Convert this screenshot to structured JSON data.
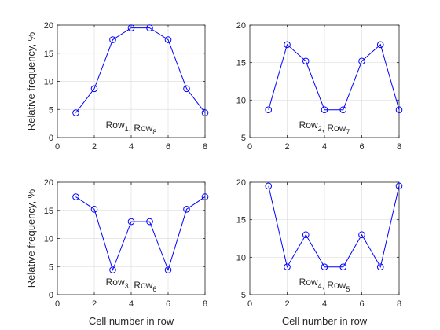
{
  "chart_data": [
    {
      "type": "line",
      "x": [
        1,
        2,
        3,
        4,
        5,
        6,
        7,
        8
      ],
      "series": [
        {
          "values": [
            4.4,
            8.7,
            17.4,
            19.5,
            19.5,
            17.4,
            8.7,
            4.4
          ]
        }
      ],
      "annotation": {
        "parts": [
          [
            "Row",
            "1"
          ],
          [
            "Row",
            "8"
          ]
        ]
      },
      "xlim": [
        0,
        8
      ],
      "ylim": [
        0,
        20
      ],
      "xticks": [
        0,
        2,
        4,
        6,
        8
      ],
      "yticks": [
        0,
        5,
        10,
        15,
        20
      ],
      "xlabel": "",
      "ylabel": "Relative frequency,  %",
      "grid": true,
      "color": "#0000ff",
      "marker": "circle"
    },
    {
      "type": "line",
      "x": [
        1,
        2,
        3,
        4,
        5,
        6,
        7,
        8
      ],
      "series": [
        {
          "values": [
            8.7,
            17.4,
            15.2,
            8.7,
            8.7,
            15.2,
            17.4,
            8.7
          ]
        }
      ],
      "annotation": {
        "parts": [
          [
            "Row",
            "2"
          ],
          [
            "Row",
            "7"
          ]
        ]
      },
      "xlim": [
        0,
        8
      ],
      "ylim": [
        5,
        20
      ],
      "xticks": [
        0,
        2,
        4,
        6,
        8
      ],
      "yticks": [
        5,
        10,
        15,
        20
      ],
      "xlabel": "",
      "ylabel": "",
      "grid": true,
      "color": "#0000ff",
      "marker": "circle"
    },
    {
      "type": "line",
      "x": [
        1,
        2,
        3,
        4,
        5,
        6,
        7,
        8
      ],
      "series": [
        {
          "values": [
            17.4,
            15.2,
            4.4,
            13.0,
            13.0,
            4.4,
            15.2,
            17.4
          ]
        }
      ],
      "annotation": {
        "parts": [
          [
            "Row",
            "3"
          ],
          [
            "Row",
            "6"
          ]
        ]
      },
      "xlim": [
        0,
        8
      ],
      "ylim": [
        0,
        20
      ],
      "xticks": [
        0,
        2,
        4,
        6,
        8
      ],
      "yticks": [
        0,
        5,
        10,
        15,
        20
      ],
      "xlabel": "Cell number in row",
      "ylabel": "Relative frequency,  %",
      "grid": true,
      "color": "#0000ff",
      "marker": "circle"
    },
    {
      "type": "line",
      "x": [
        1,
        2,
        3,
        4,
        5,
        6,
        7,
        8
      ],
      "series": [
        {
          "values": [
            19.5,
            8.7,
            13.0,
            8.7,
            8.7,
            13.0,
            8.7,
            19.5
          ]
        }
      ],
      "annotation": {
        "parts": [
          [
            "Row",
            "4"
          ],
          [
            "Row",
            "5"
          ]
        ]
      },
      "xlim": [
        0,
        8
      ],
      "ylim": [
        5,
        20
      ],
      "xticks": [
        0,
        2,
        4,
        6,
        8
      ],
      "yticks": [
        5,
        10,
        15,
        20
      ],
      "xlabel": "Cell number in row",
      "ylabel": "",
      "grid": true,
      "color": "#0000ff",
      "marker": "circle"
    }
  ]
}
